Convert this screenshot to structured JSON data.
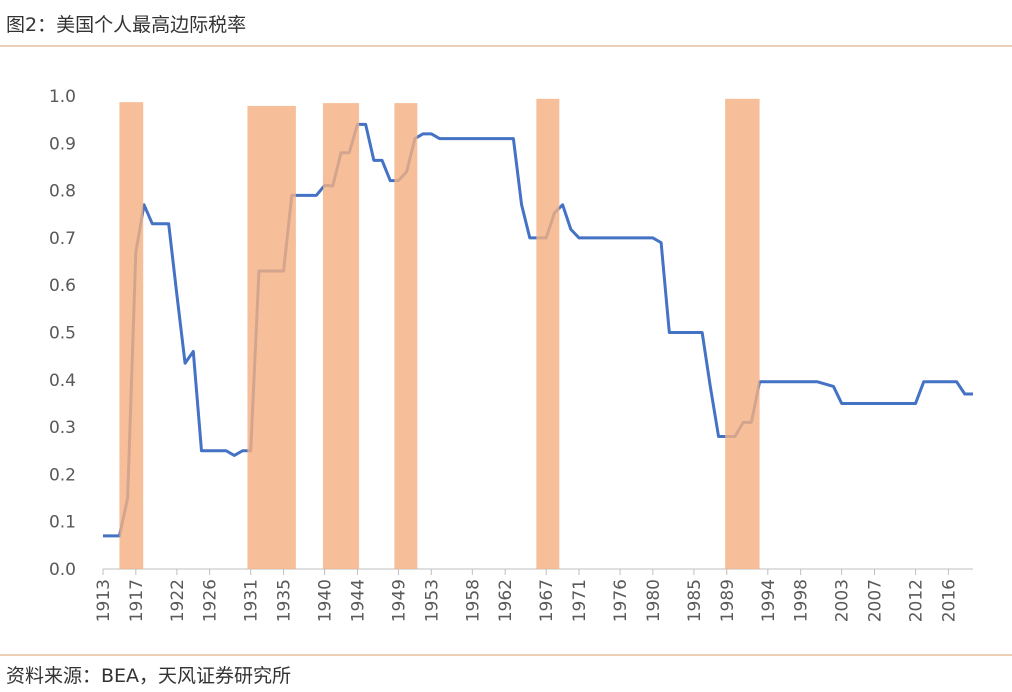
{
  "chart_data": {
    "type": "line",
    "title": "图2：美国个人最高边际税率",
    "source": "资料来源：BEA，天风证券研究所",
    "x": [
      1913,
      1914,
      1915,
      1916,
      1917,
      1918,
      1919,
      1920,
      1921,
      1922,
      1923,
      1924,
      1925,
      1926,
      1927,
      1928,
      1929,
      1930,
      1931,
      1932,
      1933,
      1934,
      1935,
      1936,
      1937,
      1938,
      1939,
      1940,
      1941,
      1942,
      1943,
      1944,
      1945,
      1946,
      1947,
      1948,
      1949,
      1950,
      1951,
      1952,
      1953,
      1954,
      1955,
      1956,
      1957,
      1958,
      1959,
      1960,
      1961,
      1962,
      1963,
      1964,
      1965,
      1966,
      1967,
      1968,
      1969,
      1970,
      1971,
      1972,
      1973,
      1974,
      1975,
      1976,
      1977,
      1978,
      1979,
      1980,
      1981,
      1982,
      1983,
      1984,
      1985,
      1986,
      1987,
      1988,
      1989,
      1990,
      1991,
      1992,
      1993,
      1994,
      1995,
      1996,
      1997,
      1998,
      1999,
      2000,
      2001,
      2002,
      2003,
      2004,
      2005,
      2006,
      2007,
      2008,
      2009,
      2010,
      2011,
      2012,
      2013,
      2014,
      2015,
      2016,
      2017,
      2018,
      2019
    ],
    "series": [
      {
        "color": "#4472c4",
        "values": [
          0.07,
          0.07,
          0.07,
          0.15,
          0.67,
          0.77,
          0.73,
          0.73,
          0.73,
          0.58,
          0.435,
          0.46,
          0.25,
          0.25,
          0.25,
          0.25,
          0.24,
          0.25,
          0.25,
          0.63,
          0.63,
          0.63,
          0.63,
          0.79,
          0.79,
          0.79,
          0.79,
          0.811,
          0.81,
          0.88,
          0.88,
          0.94,
          0.94,
          0.864,
          0.864,
          0.821,
          0.821,
          0.84,
          0.91,
          0.92,
          0.92,
          0.91,
          0.91,
          0.91,
          0.91,
          0.91,
          0.91,
          0.91,
          0.91,
          0.91,
          0.91,
          0.77,
          0.7,
          0.7,
          0.7,
          0.753,
          0.77,
          0.718,
          0.7,
          0.7,
          0.7,
          0.7,
          0.7,
          0.7,
          0.7,
          0.7,
          0.7,
          0.7,
          0.69,
          0.5,
          0.5,
          0.5,
          0.5,
          0.5,
          0.385,
          0.28,
          0.28,
          0.28,
          0.31,
          0.31,
          0.396,
          0.396,
          0.396,
          0.396,
          0.396,
          0.396,
          0.396,
          0.396,
          0.391,
          0.386,
          0.35,
          0.35,
          0.35,
          0.35,
          0.35,
          0.35,
          0.35,
          0.35,
          0.35,
          0.35,
          0.396,
          0.396,
          0.396,
          0.396,
          0.396,
          0.37,
          0.37
        ]
      }
    ],
    "bands": {
      "color": "#f4b183",
      "items": [
        {
          "start": 1915,
          "end": 1917.9,
          "value": 0.987
        },
        {
          "start": 1930.6,
          "end": 1936.5,
          "value": 0.979
        },
        {
          "start": 1939.8,
          "end": 1944.2,
          "value": 0.985
        },
        {
          "start": 1948.5,
          "end": 1951.3,
          "value": 0.985
        },
        {
          "start": 1965.8,
          "end": 1968.6,
          "value": 0.994
        },
        {
          "start": 1988.8,
          "end": 1993,
          "value": 0.994
        }
      ]
    },
    "xlim": [
      1913,
      2019
    ],
    "xticks": [
      1913,
      1917,
      1922,
      1926,
      1931,
      1935,
      1940,
      1944,
      1949,
      1953,
      1958,
      1962,
      1967,
      1971,
      1976,
      1980,
      1985,
      1989,
      1994,
      1998,
      2003,
      2007,
      2012,
      2016
    ],
    "ylim": [
      0,
      1
    ],
    "yticks": [
      {
        "value": 0,
        "label": "0.0"
      },
      0.1,
      0.2,
      0.3,
      0.4,
      0.5,
      0.6,
      0.7,
      0.8,
      0.9,
      {
        "value": 1,
        "label": "1.0"
      }
    ]
  }
}
